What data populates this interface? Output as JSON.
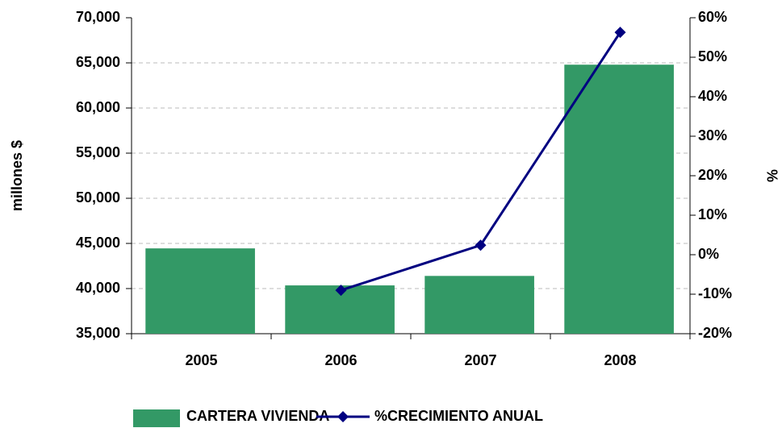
{
  "chart_data": {
    "type": "bar-line",
    "categories": [
      "2005",
      "2006",
      "2007",
      "2008"
    ],
    "series": [
      {
        "name": "CARTERA VIVIENDA",
        "type": "bar",
        "color": "#339966",
        "values": [
          44450,
          40350,
          41400,
          64800
        ]
      },
      {
        "name": "%CRECIMIENTO ANUAL",
        "type": "line",
        "axis": "y2",
        "color": "#000080",
        "values": [
          null,
          -9,
          2.4,
          56.3
        ]
      }
    ],
    "y_label": "millones $",
    "y2_label": "%",
    "ylim": [
      35000,
      70000
    ],
    "yticks": [
      {
        "value": 35000,
        "label": "35,000"
      },
      {
        "value": 40000,
        "label": "40,000"
      },
      {
        "value": 45000,
        "label": "45,000"
      },
      {
        "value": 50000,
        "label": "50,000"
      },
      {
        "value": 55000,
        "label": "55,000"
      },
      {
        "value": 60000,
        "label": "60,000"
      },
      {
        "value": 65000,
        "label": "65,000"
      },
      {
        "value": 70000,
        "label": "70,000"
      }
    ],
    "y2lim": [
      -20,
      60
    ],
    "y2ticks": [
      {
        "value": -20,
        "label": "-20%"
      },
      {
        "value": -10,
        "label": "-10%"
      },
      {
        "value": 0,
        "label": "0%"
      },
      {
        "value": 10,
        "label": "10%"
      },
      {
        "value": 20,
        "label": "20%"
      },
      {
        "value": 30,
        "label": "30%"
      },
      {
        "value": 40,
        "label": "40%"
      },
      {
        "value": 50,
        "label": "50%"
      },
      {
        "value": 60,
        "label": "60%"
      }
    ],
    "grid": true,
    "legend": "bottom"
  }
}
